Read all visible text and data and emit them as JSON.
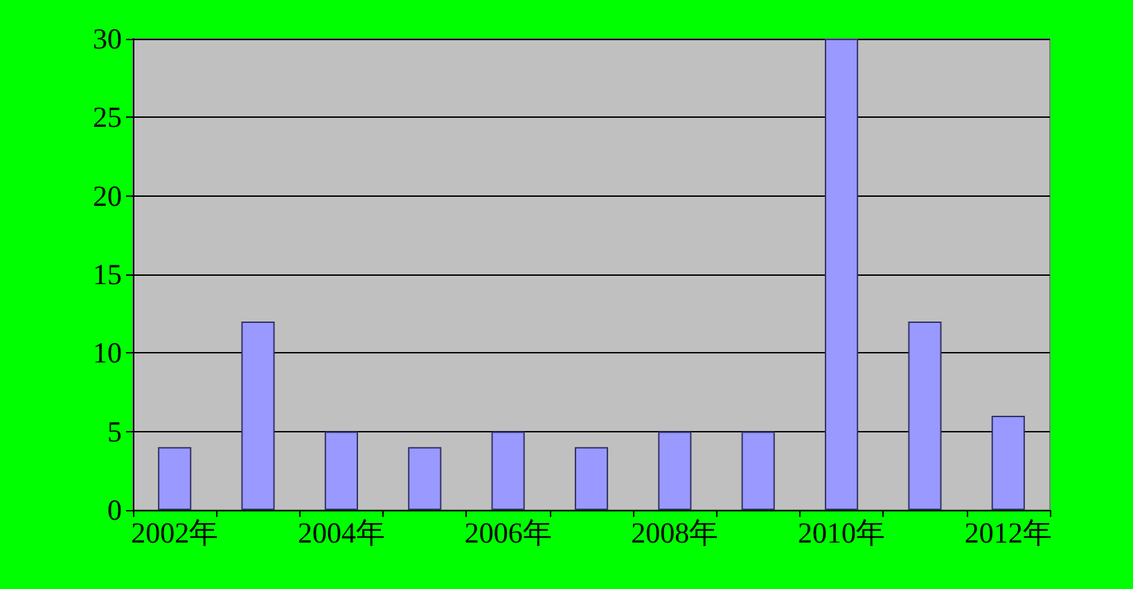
{
  "chart_data": {
    "type": "bar",
    "categories": [
      "2002年",
      null,
      "2004年",
      null,
      "2006年",
      null,
      "2008年",
      null,
      "2010年",
      null,
      "2012年"
    ],
    "values": [
      4,
      12,
      5,
      4,
      5,
      4,
      5,
      5,
      30,
      12,
      6
    ],
    "color": "#9999ff",
    "ylim": [
      0,
      30
    ],
    "yticks": [
      0,
      5,
      10,
      15,
      20,
      25,
      30
    ],
    "grid": "y"
  }
}
